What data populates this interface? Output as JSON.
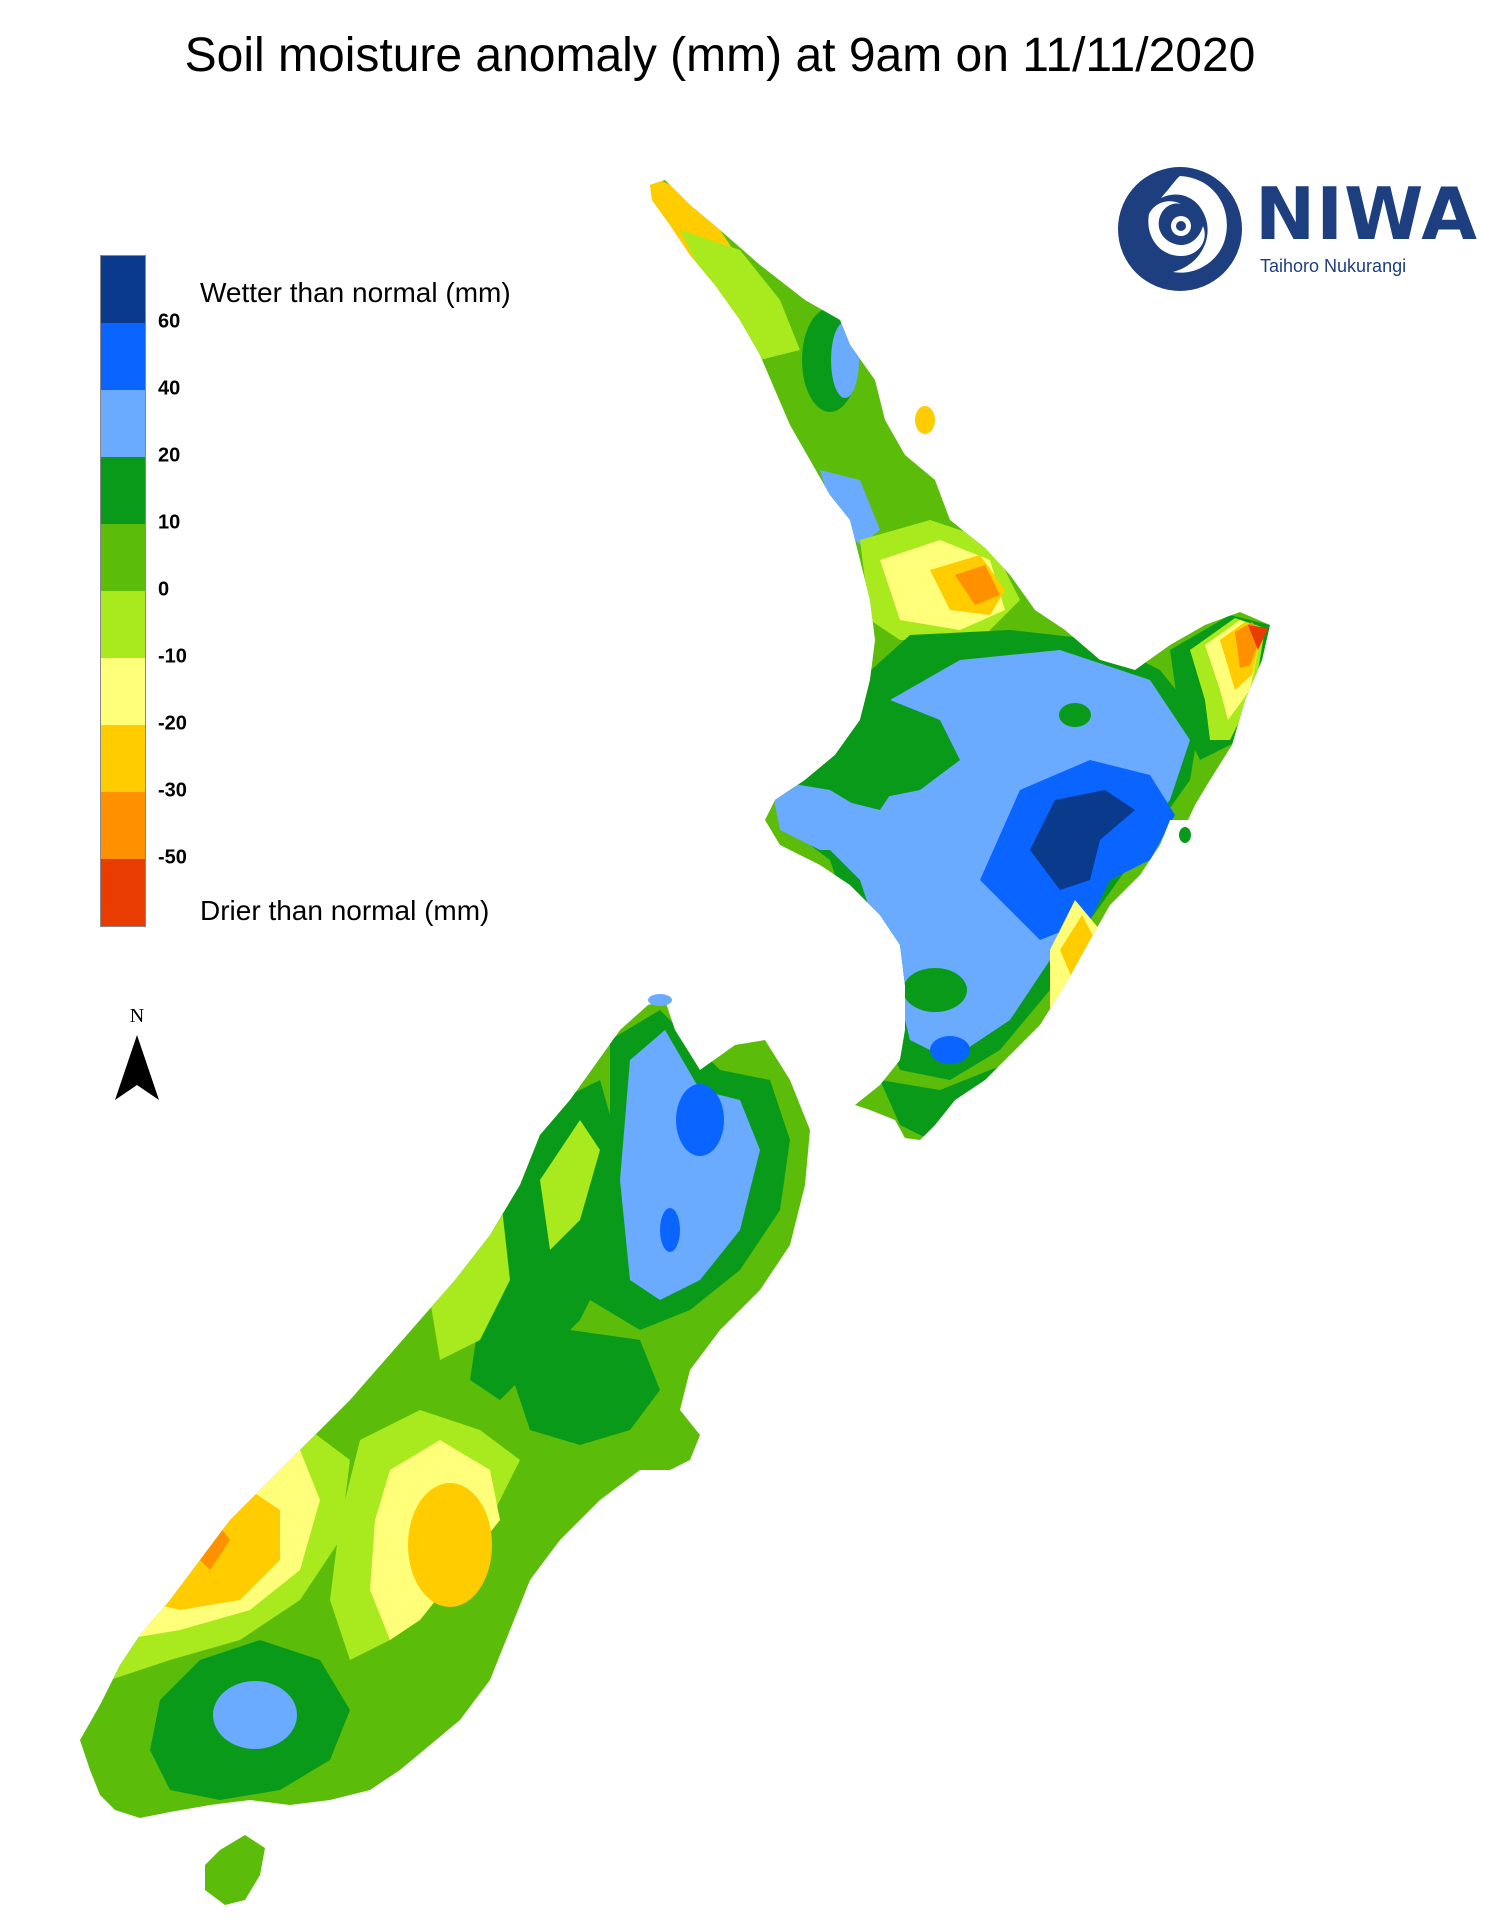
{
  "title": "Soil moisture anomaly (mm) at 9am on 11/11/2020",
  "logo": {
    "name": "NIWA",
    "subtitle": "Taihoro Nukurangi",
    "icon": "niwa-swirl-logo",
    "color": "#1d3f7f"
  },
  "legend": {
    "wetter_label": "Wetter than normal (mm)",
    "drier_label": "Drier than normal (mm)",
    "classes": [
      {
        "color": "#0a3a8c"
      },
      {
        "color": "#0a64ff"
      },
      {
        "color": "#6aaaff"
      },
      {
        "color": "#0a9a1a"
      },
      {
        "color": "#5bbc0a"
      },
      {
        "color": "#a8ea1e"
      },
      {
        "color": "#ffff7a"
      },
      {
        "color": "#ffcc00"
      },
      {
        "color": "#ff9000"
      },
      {
        "color": "#e83c00"
      }
    ],
    "ticks": [
      "60",
      "40",
      "20",
      "10",
      "0",
      "-10",
      "-20",
      "-30",
      "-50"
    ]
  },
  "north_arrow": {
    "label": "N",
    "icon": "north-arrow-icon"
  }
}
